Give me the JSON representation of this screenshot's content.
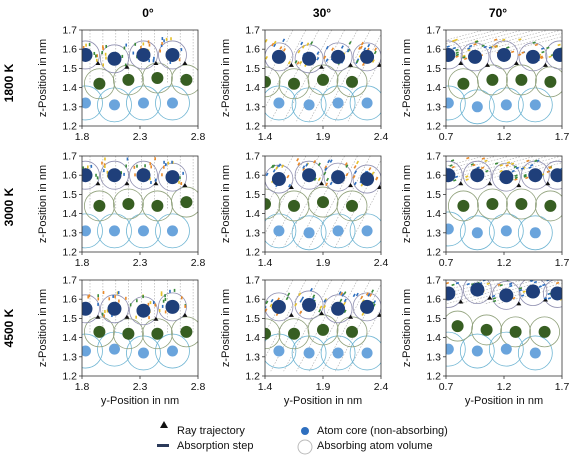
{
  "columns": [
    "0°",
    "30°",
    "70°"
  ],
  "rows": [
    "1800 K",
    "3000 K",
    "4500 K"
  ],
  "ylabel": "z-Position in nm",
  "xlabel": "y-Position in nm",
  "legend": {
    "ray": "Ray trajectory",
    "absorption": "Absorption step",
    "core": "Atom core (non-absorbing)",
    "volume": "Absorbing atom volume"
  },
  "colors": {
    "top_core": "#1f3f7a",
    "mid_core": "#375e22",
    "low_core": "#6aa4dc",
    "top_ring": "#8f8fb0",
    "mid_ring": "#8fa07a",
    "low_ring": "#6fb5d3",
    "ray": "#aaaaaa",
    "abs_blue": "#2e6fbf",
    "abs_orange": "#e88a2a",
    "abs_yellow": "#e5c02a",
    "abs_green": "#3a8a3a"
  },
  "chart_data": [
    {
      "type": "scatter",
      "row": "1800 K",
      "col": "0°",
      "xlim": [
        1.8,
        2.8
      ],
      "ylim": [
        1.2,
        1.7
      ],
      "xticks": [
        "1.8",
        "2.3",
        "2.8"
      ],
      "yticks": [
        "1.2",
        "1.3",
        "1.4",
        "1.5",
        "1.6",
        "1.7"
      ],
      "atoms_top": [
        [
          1.83,
          1.57
        ],
        [
          2.08,
          1.55
        ],
        [
          2.33,
          1.57
        ],
        [
          2.58,
          1.57
        ]
      ],
      "atoms_mid": [
        [
          1.95,
          1.42
        ],
        [
          2.2,
          1.44
        ],
        [
          2.45,
          1.45
        ],
        [
          2.7,
          1.44
        ]
      ],
      "atoms_low": [
        [
          1.83,
          1.32
        ],
        [
          2.08,
          1.31
        ],
        [
          2.33,
          1.32
        ],
        [
          2.58,
          1.32
        ]
      ]
    },
    {
      "type": "scatter",
      "row": "1800 K",
      "col": "30°",
      "xlim": [
        1.4,
        2.4
      ],
      "ylim": [
        1.2,
        1.7
      ],
      "xticks": [
        "1.4",
        "1.9",
        "2.4"
      ],
      "yticks": [
        "1.2",
        "1.3",
        "1.4",
        "1.5",
        "1.6",
        "1.7"
      ],
      "atoms_top": [
        [
          1.52,
          1.56
        ],
        [
          1.78,
          1.55
        ],
        [
          2.03,
          1.56
        ],
        [
          2.28,
          1.56
        ]
      ],
      "atoms_mid": [
        [
          1.4,
          1.43
        ],
        [
          1.65,
          1.42
        ],
        [
          1.9,
          1.44
        ],
        [
          2.15,
          1.43
        ]
      ],
      "atoms_low": [
        [
          1.52,
          1.32
        ],
        [
          1.78,
          1.31
        ],
        [
          2.03,
          1.32
        ],
        [
          2.28,
          1.32
        ]
      ]
    },
    {
      "type": "scatter",
      "row": "1800 K",
      "col": "70°",
      "xlim": [
        0.7,
        1.7
      ],
      "ylim": [
        1.2,
        1.7
      ],
      "xticks": [
        "0.7",
        "1.2",
        "1.7"
      ],
      "yticks": [
        "1.2",
        "1.3",
        "1.4",
        "1.5",
        "1.6",
        "1.7"
      ],
      "atoms_top": [
        [
          0.72,
          1.57
        ],
        [
          0.95,
          1.56
        ],
        [
          1.2,
          1.57
        ],
        [
          1.45,
          1.56
        ],
        [
          1.68,
          1.57
        ]
      ],
      "atoms_mid": [
        [
          0.85,
          1.42
        ],
        [
          1.1,
          1.44
        ],
        [
          1.35,
          1.44
        ],
        [
          1.6,
          1.43
        ]
      ],
      "atoms_low": [
        [
          0.72,
          1.32
        ],
        [
          0.97,
          1.3
        ],
        [
          1.22,
          1.31
        ],
        [
          1.47,
          1.31
        ]
      ]
    },
    {
      "type": "scatter",
      "row": "3000 K",
      "col": "0°",
      "xlim": [
        1.8,
        2.8
      ],
      "ylim": [
        1.2,
        1.7
      ],
      "xticks": [
        "1.8",
        "2.3",
        "2.8"
      ],
      "yticks": [
        "1.2",
        "1.3",
        "1.4",
        "1.5",
        "1.6",
        "1.7"
      ],
      "atoms_top": [
        [
          1.83,
          1.6
        ],
        [
          2.08,
          1.6
        ],
        [
          2.33,
          1.6
        ],
        [
          2.58,
          1.59
        ]
      ],
      "atoms_mid": [
        [
          1.95,
          1.44
        ],
        [
          2.2,
          1.45
        ],
        [
          2.45,
          1.44
        ],
        [
          2.7,
          1.46
        ]
      ],
      "atoms_low": [
        [
          1.83,
          1.31
        ],
        [
          2.08,
          1.31
        ],
        [
          2.33,
          1.31
        ],
        [
          2.58,
          1.31
        ]
      ]
    },
    {
      "type": "scatter",
      "row": "3000 K",
      "col": "30°",
      "xlim": [
        1.4,
        2.4
      ],
      "ylim": [
        1.2,
        1.7
      ],
      "xticks": [
        "1.4",
        "1.9",
        "2.4"
      ],
      "yticks": [
        "1.2",
        "1.3",
        "1.4",
        "1.5",
        "1.6",
        "1.7"
      ],
      "atoms_top": [
        [
          1.52,
          1.58
        ],
        [
          1.78,
          1.6
        ],
        [
          2.03,
          1.59
        ],
        [
          2.28,
          1.58
        ]
      ],
      "atoms_mid": [
        [
          1.4,
          1.45
        ],
        [
          1.65,
          1.44
        ],
        [
          1.9,
          1.46
        ],
        [
          2.15,
          1.44
        ]
      ],
      "atoms_low": [
        [
          1.52,
          1.31
        ],
        [
          1.78,
          1.3
        ],
        [
          2.03,
          1.31
        ],
        [
          2.28,
          1.31
        ]
      ]
    },
    {
      "type": "scatter",
      "row": "3000 K",
      "col": "70°",
      "xlim": [
        0.7,
        1.7
      ],
      "ylim": [
        1.2,
        1.7
      ],
      "xticks": [
        "0.7",
        "1.2",
        "1.7"
      ],
      "yticks": [
        "1.2",
        "1.3",
        "1.4",
        "1.5",
        "1.6",
        "1.7"
      ],
      "atoms_top": [
        [
          0.72,
          1.6
        ],
        [
          0.97,
          1.6
        ],
        [
          1.22,
          1.59
        ],
        [
          1.47,
          1.6
        ],
        [
          1.66,
          1.6
        ]
      ],
      "atoms_mid": [
        [
          0.85,
          1.44
        ],
        [
          1.1,
          1.45
        ],
        [
          1.35,
          1.45
        ],
        [
          1.6,
          1.44
        ]
      ],
      "atoms_low": [
        [
          0.72,
          1.32
        ],
        [
          0.97,
          1.3
        ],
        [
          1.22,
          1.31
        ],
        [
          1.47,
          1.3
        ]
      ]
    },
    {
      "type": "scatter",
      "row": "4500 K",
      "col": "0°",
      "xlim": [
        1.8,
        2.8
      ],
      "ylim": [
        1.2,
        1.7
      ],
      "xticks": [
        "1.8",
        "2.3",
        "2.8"
      ],
      "yticks": [
        "1.2",
        "1.3",
        "1.4",
        "1.5",
        "1.6",
        "1.7"
      ],
      "atoms_top": [
        [
          1.83,
          1.55
        ],
        [
          2.08,
          1.55
        ],
        [
          2.33,
          1.54
        ],
        [
          2.58,
          1.56
        ]
      ],
      "atoms_mid": [
        [
          1.95,
          1.43
        ],
        [
          2.2,
          1.42
        ],
        [
          2.45,
          1.42
        ],
        [
          2.7,
          1.43
        ]
      ],
      "atoms_low": [
        [
          1.83,
          1.33
        ],
        [
          2.08,
          1.34
        ],
        [
          2.33,
          1.32
        ],
        [
          2.58,
          1.33
        ]
      ]
    },
    {
      "type": "scatter",
      "row": "4500 K",
      "col": "30°",
      "xlim": [
        1.4,
        2.4
      ],
      "ylim": [
        1.2,
        1.7
      ],
      "xticks": [
        "1.4",
        "1.9",
        "2.4"
      ],
      "yticks": [
        "1.2",
        "1.3",
        "1.4",
        "1.5",
        "1.6",
        "1.7"
      ],
      "atoms_top": [
        [
          1.52,
          1.56
        ],
        [
          1.78,
          1.57
        ],
        [
          2.03,
          1.55
        ],
        [
          2.28,
          1.56
        ]
      ],
      "atoms_mid": [
        [
          1.4,
          1.42
        ],
        [
          1.65,
          1.42
        ],
        [
          1.9,
          1.44
        ],
        [
          2.15,
          1.43
        ]
      ],
      "atoms_low": [
        [
          1.52,
          1.33
        ],
        [
          1.78,
          1.32
        ],
        [
          2.03,
          1.32
        ],
        [
          2.28,
          1.32
        ]
      ]
    },
    {
      "type": "scatter",
      "row": "4500 K",
      "col": "70°",
      "xlim": [
        0.7,
        1.7
      ],
      "ylim": [
        1.2,
        1.7
      ],
      "xticks": [
        "0.7",
        "1.2",
        "1.7"
      ],
      "yticks": [
        "1.2",
        "1.3",
        "1.4",
        "1.5",
        "1.6",
        "1.7"
      ],
      "atoms_top": [
        [
          0.72,
          1.63
        ],
        [
          0.97,
          1.65
        ],
        [
          1.22,
          1.62
        ],
        [
          1.45,
          1.64
        ],
        [
          1.66,
          1.63
        ]
      ],
      "atoms_mid": [
        [
          0.8,
          1.46
        ],
        [
          1.05,
          1.44
        ],
        [
          1.3,
          1.43
        ],
        [
          1.55,
          1.43
        ]
      ],
      "atoms_low": [
        [
          0.72,
          1.34
        ],
        [
          0.97,
          1.33
        ],
        [
          1.22,
          1.34
        ],
        [
          1.47,
          1.32
        ]
      ]
    }
  ]
}
